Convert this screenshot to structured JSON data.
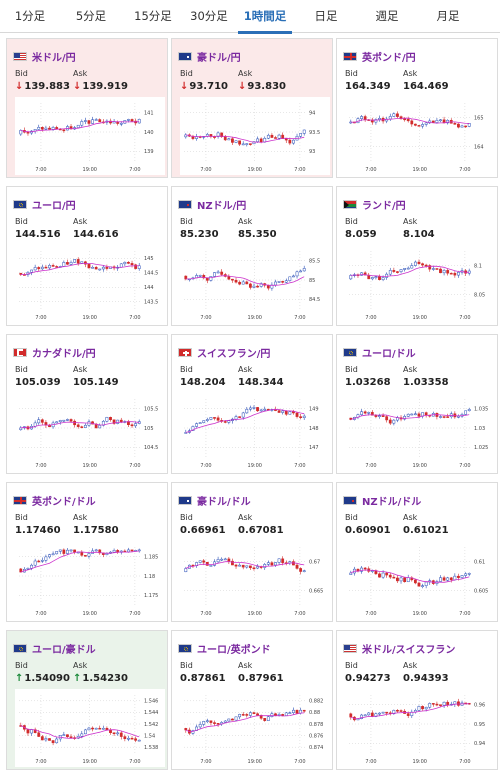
{
  "tabs": [
    {
      "label": "1分足",
      "active": false
    },
    {
      "label": "5分足",
      "active": false
    },
    {
      "label": "15分足",
      "active": false
    },
    {
      "label": "30分足",
      "active": false
    },
    {
      "label": "1時間足",
      "active": true
    },
    {
      "label": "日足",
      "active": false
    },
    {
      "label": "週足",
      "active": false
    },
    {
      "label": "月足",
      "active": false
    }
  ],
  "labels": {
    "bid": "Bid",
    "ask": "Ask"
  },
  "cards": [
    {
      "pair": "米ドル/円",
      "bid": "139.883",
      "ask": "139.919",
      "trend": "down",
      "flags": [
        "us",
        "jp"
      ],
      "yticks": [
        "141",
        "140",
        "139"
      ],
      "xticks": [
        "7:00",
        "19:00",
        "7:00"
      ]
    },
    {
      "pair": "豪ドル/円",
      "bid": "93.710",
      "ask": "93.830",
      "trend": "down",
      "flags": [
        "au",
        "jp"
      ],
      "yticks": [
        "94",
        "93.5",
        "93"
      ],
      "xticks": [
        "7:00",
        "19:00",
        "7:00"
      ]
    },
    {
      "pair": "英ポンド/円",
      "bid": "164.349",
      "ask": "164.469",
      "trend": "none",
      "flags": [
        "uk",
        "jp"
      ],
      "yticks": [
        "165",
        "164"
      ],
      "xticks": [
        "7:00",
        "19:00",
        "7:00"
      ]
    },
    {
      "pair": "ユーロ/円",
      "bid": "144.516",
      "ask": "144.616",
      "trend": "none",
      "flags": [
        "eu",
        "jp"
      ],
      "yticks": [
        "145",
        "144.5",
        "144",
        "143.5"
      ],
      "xticks": [
        "7:00",
        "19:00",
        "7:00"
      ]
    },
    {
      "pair": "NZドル/円",
      "bid": "85.230",
      "ask": "85.350",
      "trend": "none",
      "flags": [
        "nz",
        "jp"
      ],
      "yticks": [
        "85.5",
        "85",
        "84.5"
      ],
      "xticks": [
        "7:00",
        "19:00",
        "7:00"
      ]
    },
    {
      "pair": "ランド/円",
      "bid": "8.059",
      "ask": "8.104",
      "trend": "none",
      "flags": [
        "za",
        "jp"
      ],
      "yticks": [
        "8.1",
        "8.05"
      ],
      "xticks": [
        "7:00",
        "19:00",
        "7:00"
      ]
    },
    {
      "pair": "カナダドル/円",
      "bid": "105.039",
      "ask": "105.149",
      "trend": "none",
      "flags": [
        "ca",
        "jp"
      ],
      "yticks": [
        "105.5",
        "105",
        "104.5"
      ],
      "xticks": [
        "7:00",
        "19:00",
        "7:00"
      ]
    },
    {
      "pair": "スイスフラン/円",
      "bid": "148.204",
      "ask": "148.344",
      "trend": "none",
      "flags": [
        "ch",
        "jp"
      ],
      "yticks": [
        "149",
        "148",
        "147"
      ],
      "xticks": [
        "7:00",
        "19:00",
        "7:00"
      ]
    },
    {
      "pair": "ユーロ/ドル",
      "bid": "1.03268",
      "ask": "1.03358",
      "trend": "none",
      "flags": [
        "eu",
        "us"
      ],
      "yticks": [
        "1.035",
        "1.03",
        "1.025"
      ],
      "xticks": [
        "7:00",
        "19:00",
        "7:00"
      ]
    },
    {
      "pair": "英ポンド/ドル",
      "bid": "1.17460",
      "ask": "1.17580",
      "trend": "none",
      "flags": [
        "uk",
        "us"
      ],
      "yticks": [
        "1.185",
        "1.18",
        "1.175"
      ],
      "xticks": [
        "7:00",
        "19:00",
        "7:00"
      ]
    },
    {
      "pair": "豪ドル/ドル",
      "bid": "0.66961",
      "ask": "0.67081",
      "trend": "none",
      "flags": [
        "au",
        "us"
      ],
      "yticks": [
        "0.67",
        "0.665"
      ],
      "xticks": [
        "7:00",
        "19:00",
        "7:00"
      ]
    },
    {
      "pair": "NZドル/ドル",
      "bid": "0.60901",
      "ask": "0.61021",
      "trend": "none",
      "flags": [
        "nz",
        "us"
      ],
      "yticks": [
        "0.61",
        "0.605"
      ],
      "xticks": [
        "7:00",
        "19:00",
        "7:00"
      ]
    },
    {
      "pair": "ユーロ/豪ドル",
      "bid": "1.54090",
      "ask": "1.54230",
      "trend": "up",
      "flags": [
        "eu",
        "au"
      ],
      "yticks": [
        "1.546",
        "1.544",
        "1.542",
        "1.54",
        "1.538"
      ],
      "xticks": [
        "7:00",
        "19:00",
        "7:00"
      ]
    },
    {
      "pair": "ユーロ/英ポンド",
      "bid": "0.87861",
      "ask": "0.87961",
      "trend": "none",
      "flags": [
        "eu",
        "uk"
      ],
      "yticks": [
        "0.882",
        "0.88",
        "0.878",
        "0.876",
        "0.874"
      ],
      "xticks": [
        "7:00",
        "19:00",
        "7:00"
      ]
    },
    {
      "pair": "米ドル/スイスフラン",
      "bid": "0.94273",
      "ask": "0.94393",
      "trend": "none",
      "flags": [
        "us",
        "ch"
      ],
      "yticks": [
        "0.96",
        "0.95",
        "0.94"
      ],
      "xticks": [
        "7:00",
        "19:00",
        "7:00"
      ]
    }
  ],
  "colors": {
    "accent": "#2a6fb7",
    "pair_text": "#7b2aa0",
    "candle_up": "#2a4fb7",
    "candle_down": "#d12b2b",
    "moving_avg": "#cc33cc",
    "down_bg": "#fbe9e9",
    "up_bg": "#eaf3ea"
  }
}
